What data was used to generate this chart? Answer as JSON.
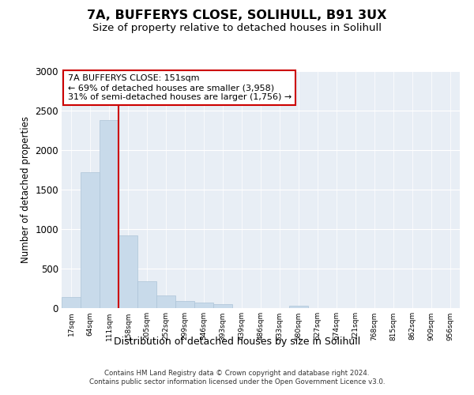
{
  "title1": "7A, BUFFERYS CLOSE, SOLIHULL, B91 3UX",
  "title2": "Size of property relative to detached houses in Solihull",
  "xlabel": "Distribution of detached houses by size in Solihull",
  "ylabel": "Number of detached properties",
  "bar_labels": [
    "17sqm",
    "64sqm",
    "111sqm",
    "158sqm",
    "205sqm",
    "252sqm",
    "299sqm",
    "346sqm",
    "393sqm",
    "439sqm",
    "486sqm",
    "533sqm",
    "580sqm",
    "627sqm",
    "674sqm",
    "721sqm",
    "768sqm",
    "815sqm",
    "862sqm",
    "909sqm",
    "956sqm"
  ],
  "bar_values": [
    140,
    1720,
    2380,
    920,
    340,
    160,
    90,
    70,
    50,
    0,
    0,
    0,
    30,
    0,
    0,
    0,
    0,
    0,
    0,
    0,
    0
  ],
  "bar_color": "#c8daea",
  "bar_edgecolor": "#adc4d8",
  "vline_pos": 2.5,
  "vline_color": "#cc0000",
  "annotation_text": "7A BUFFERYS CLOSE: 151sqm\n← 69% of detached houses are smaller (3,958)\n31% of semi-detached houses are larger (1,756) →",
  "annotation_box_facecolor": "#ffffff",
  "annotation_box_edgecolor": "#cc0000",
  "ylim": [
    0,
    3000
  ],
  "yticks": [
    0,
    500,
    1000,
    1500,
    2000,
    2500,
    3000
  ],
  "plot_bg_color": "#e8eef5",
  "footer_text": "Contains HM Land Registry data © Crown copyright and database right 2024.\nContains public sector information licensed under the Open Government Licence v3.0."
}
